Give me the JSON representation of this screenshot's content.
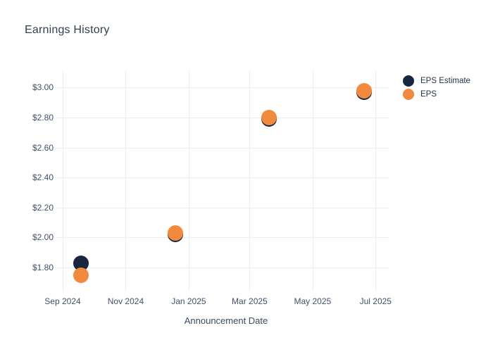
{
  "chart_data": {
    "type": "scatter",
    "title": "Earnings History",
    "xlabel": "Announcement Date",
    "ylabel": "",
    "grid": true,
    "legend_position": "top-right",
    "y_axis": {
      "min": 1.8,
      "max": 3.0,
      "tick_step": 0.2,
      "ticks": [
        {
          "value": 1.8,
          "label": "$1.80"
        },
        {
          "value": 2.0,
          "label": "$2.00"
        },
        {
          "value": 2.2,
          "label": "$2.20"
        },
        {
          "value": 2.4,
          "label": "$2.40"
        },
        {
          "value": 2.6,
          "label": "$2.60"
        },
        {
          "value": 2.8,
          "label": "$2.80"
        },
        {
          "value": 3.0,
          "label": "$3.00"
        }
      ]
    },
    "x_axis": {
      "start_date": "2024-09-01",
      "end_date": "2025-07-14",
      "ticks": [
        {
          "date": "2024-09-01",
          "label": "Sep 2024"
        },
        {
          "date": "2024-11-01",
          "label": "Nov 2024"
        },
        {
          "date": "2025-01-01",
          "label": "Jan 2025"
        },
        {
          "date": "2025-03-01",
          "label": "Mar 2025"
        },
        {
          "date": "2025-05-01",
          "label": "May 2025"
        },
        {
          "date": "2025-07-01",
          "label": "Jul 2025"
        }
      ]
    },
    "series": [
      {
        "name": "EPS Estimate",
        "color": "#18263f",
        "points": [
          {
            "date": "2024-09-19",
            "value": 1.83
          },
          {
            "date": "2024-12-19",
            "value": 2.02
          },
          {
            "date": "2025-03-20",
            "value": 2.79
          },
          {
            "date": "2025-06-20",
            "value": 2.97
          }
        ]
      },
      {
        "name": "EPS",
        "color": "#f18a3c",
        "points": [
          {
            "date": "2024-09-19",
            "value": 1.75
          },
          {
            "date": "2024-12-19",
            "value": 2.03
          },
          {
            "date": "2025-03-20",
            "value": 2.8
          },
          {
            "date": "2025-06-20",
            "value": 2.98
          }
        ]
      }
    ],
    "colors": {
      "estimate": "#18263f",
      "actual": "#f18a3c",
      "gridline": "#e9eef5",
      "title_text": "#2e4154",
      "axis_text": "#40506a"
    }
  }
}
